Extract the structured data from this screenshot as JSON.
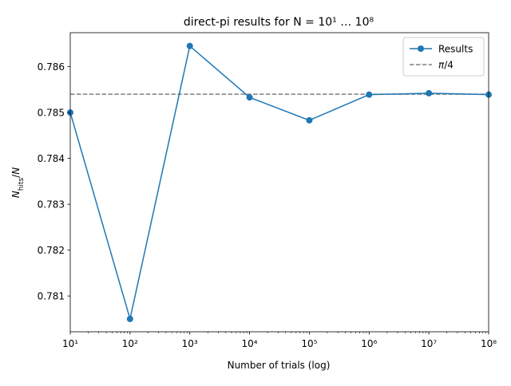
{
  "chart_data": {
    "type": "line",
    "title": "direct-pi results for N = 10¹ … 10⁸",
    "xlabel": "Number of trials (log)",
    "ylabel": "N_hits/N",
    "x_scale": "log",
    "xlim": [
      10,
      100000000
    ],
    "ylim": [
      0.78022,
      0.78674
    ],
    "grid": false,
    "legend_position": "top-right",
    "x": [
      10,
      100,
      1000,
      10000,
      100000,
      1000000,
      10000000,
      100000000
    ],
    "x_tick_labels": [
      "10¹",
      "10²",
      "10³",
      "10⁴",
      "10⁵",
      "10⁶",
      "10⁷",
      "10⁸"
    ],
    "y_ticks": [
      0.781,
      0.782,
      0.783,
      0.784,
      0.785,
      0.786
    ],
    "y_tick_labels": [
      "0.781",
      "0.782",
      "0.783",
      "0.784",
      "0.785",
      "0.786"
    ],
    "series": [
      {
        "name": "Results",
        "color": "#1f77b4",
        "marker": "circle",
        "style": "solid",
        "values": [
          0.785,
          0.7805,
          0.78645,
          0.78533,
          0.78483,
          0.78539,
          0.78542,
          0.78539
        ]
      }
    ],
    "reference_lines": [
      {
        "name": "π/4",
        "value": 0.785398,
        "color": "#808080",
        "style": "dashed"
      }
    ]
  }
}
